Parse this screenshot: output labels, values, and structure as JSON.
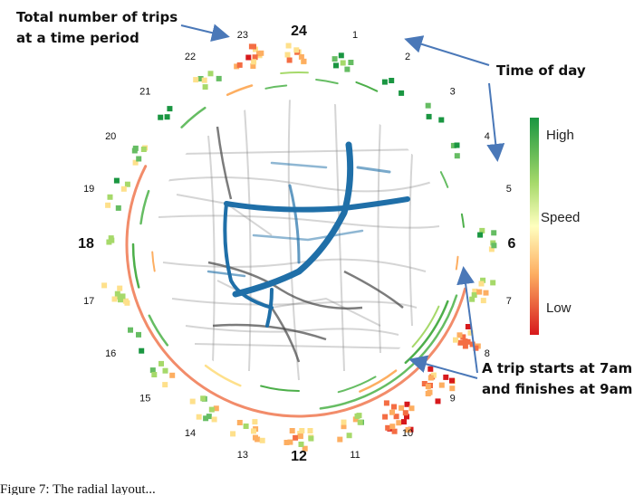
{
  "annotations": {
    "total_trips_line1": "Total number of trips",
    "total_trips_line2": "at a time period",
    "time_of_day": "Time of day",
    "trip_line1": "A trip starts at 7am",
    "trip_line2": "and finishes at 9am"
  },
  "hours": [
    "24",
    "1",
    "2",
    "3",
    "4",
    "5",
    "6",
    "7",
    "8",
    "9",
    "10",
    "11",
    "12",
    "13",
    "14",
    "15",
    "16",
    "17",
    "18",
    "19",
    "20",
    "21",
    "22",
    "23"
  ],
  "legend": {
    "title": "Speed",
    "high": "High",
    "low": "Low",
    "colors": [
      "#1a9641",
      "#a6d96a",
      "#ffffbf",
      "#fdae61",
      "#d7191c"
    ]
  },
  "caption": "Figure 7: The radial layout...",
  "colors": {
    "road_highlight": "#1f6fa8",
    "road_base": "#555555",
    "trip_arc": "#f28c6a",
    "arrow": "#4a78b8"
  }
}
